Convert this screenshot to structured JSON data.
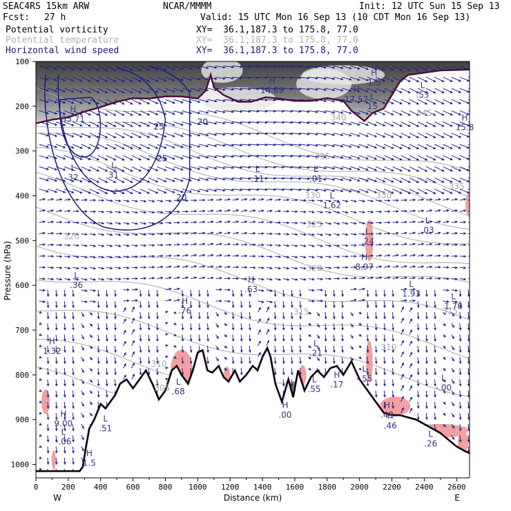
{
  "header": {
    "model": "SEAC4RS 15km ARW",
    "org": "NCAR/MMMM",
    "init": "Init: 12 UTC Sun 15 Sep 13",
    "fcst_label": "Fcst:",
    "fcst_value": "27 h",
    "valid": "Valid: 15 UTC Mon 16 Sep 13 (10 CDT Mon 16 Sep 13)",
    "fields": [
      {
        "name": "Potential vorticity",
        "xy": "XY=  36.1,187.3 to 175.8, 77.0",
        "color": "#000000"
      },
      {
        "name": "Potential temperature",
        "xy": "XY=  36.1,187.3 to 175.8, 77.0",
        "color": "#b0b0b0"
      },
      {
        "name": "Horizontal wind speed",
        "xy": "XY=  36.1,187.3 to 175.8, 77.0",
        "color": "#1a1a7a"
      }
    ]
  },
  "chart_data": {
    "type": "cross-section",
    "xlabel": "Distance (km)",
    "ylabel": "Pressure (hPa)",
    "xlim": [
      0,
      2680
    ],
    "ylim": [
      100,
      1030
    ],
    "x_ticks": [
      0,
      200,
      400,
      600,
      800,
      1000,
      1200,
      1400,
      1600,
      1800,
      2000,
      2200,
      2400,
      2600
    ],
    "y_ticks": [
      100,
      200,
      300,
      400,
      500,
      600,
      700,
      800,
      900,
      1000
    ],
    "x_end_labels": {
      "left": "W",
      "right": "E"
    },
    "terrain": [
      [
        0,
        1015
      ],
      [
        270,
        1015
      ],
      [
        290,
        1005
      ],
      [
        310,
        960
      ],
      [
        330,
        920
      ],
      [
        360,
        900
      ],
      [
        400,
        865
      ],
      [
        430,
        875
      ],
      [
        460,
        860
      ],
      [
        490,
        845
      ],
      [
        520,
        820
      ],
      [
        560,
        810
      ],
      [
        600,
        830
      ],
      [
        640,
        810
      ],
      [
        680,
        790
      ],
      [
        720,
        820
      ],
      [
        760,
        855
      ],
      [
        800,
        835
      ],
      [
        840,
        790
      ],
      [
        870,
        780
      ],
      [
        900,
        800
      ],
      [
        940,
        820
      ],
      [
        970,
        790
      ],
      [
        1000,
        750
      ],
      [
        1030,
        745
      ],
      [
        1060,
        790
      ],
      [
        1090,
        795
      ],
      [
        1130,
        780
      ],
      [
        1160,
        805
      ],
      [
        1190,
        815
      ],
      [
        1230,
        790
      ],
      [
        1260,
        815
      ],
      [
        1300,
        800
      ],
      [
        1340,
        780
      ],
      [
        1370,
        790
      ],
      [
        1400,
        760
      ],
      [
        1430,
        740
      ],
      [
        1450,
        760
      ],
      [
        1480,
        820
      ],
      [
        1520,
        860
      ],
      [
        1560,
        810
      ],
      [
        1590,
        850
      ],
      [
        1620,
        790
      ],
      [
        1660,
        835
      ],
      [
        1700,
        805
      ],
      [
        1740,
        790
      ],
      [
        1780,
        805
      ],
      [
        1820,
        785
      ],
      [
        1860,
        780
      ],
      [
        1900,
        800
      ],
      [
        1950,
        770
      ],
      [
        2000,
        810
      ],
      [
        2050,
        835
      ],
      [
        2100,
        860
      ],
      [
        2150,
        885
      ],
      [
        2200,
        890
      ],
      [
        2250,
        890
      ],
      [
        2300,
        895
      ],
      [
        2350,
        900
      ],
      [
        2400,
        910
      ],
      [
        2450,
        920
      ],
      [
        2500,
        930
      ],
      [
        2550,
        945
      ],
      [
        2600,
        960
      ],
      [
        2650,
        970
      ],
      [
        2680,
        975
      ]
    ],
    "tropopause_pv": [
      [
        0,
        238
      ],
      [
        100,
        230
      ],
      [
        200,
        225
      ],
      [
        300,
        212
      ],
      [
        400,
        202
      ],
      [
        500,
        190
      ],
      [
        600,
        182
      ],
      [
        700,
        183
      ],
      [
        800,
        178
      ],
      [
        900,
        178
      ],
      [
        1000,
        183
      ],
      [
        1050,
        165
      ],
      [
        1080,
        130
      ],
      [
        1100,
        158
      ],
      [
        1160,
        175
      ],
      [
        1250,
        190
      ],
      [
        1330,
        190
      ],
      [
        1420,
        180
      ],
      [
        1500,
        183
      ],
      [
        1600,
        188
      ],
      [
        1700,
        188
      ],
      [
        1800,
        182
      ],
      [
        1900,
        188
      ],
      [
        1950,
        210
      ],
      [
        2030,
        233
      ],
      [
        2080,
        215
      ],
      [
        2150,
        205
      ],
      [
        2200,
        175
      ],
      [
        2250,
        145
      ],
      [
        2300,
        130
      ],
      [
        2400,
        125
      ],
      [
        2500,
        120
      ],
      [
        2680,
        118
      ]
    ],
    "theta_contours": [
      {
        "label": "340",
        "label_x": 1870,
        "label_p": 232
      },
      {
        "label": "335",
        "label_x": 1770,
        "label_p": 318
      },
      {
        "label": "330",
        "label_x": 1710,
        "label_p": 405
      },
      {
        "label": "325",
        "label_x": 1720,
        "label_p": 470
      },
      {
        "label": "320",
        "label_x": 1720,
        "label_p": 568
      },
      {
        "label": "315",
        "label_x": 1640,
        "label_p": 665
      },
      {
        "label": "310",
        "label_x": 2180,
        "label_p": 745
      }
    ],
    "theta_side_labels": [
      {
        "label": "345",
        "x": 2400,
        "p": 222
      },
      {
        "label": "335",
        "x": 2600,
        "p": 385
      },
      {
        "label": "315",
        "x": 2560,
        "p": 664
      },
      {
        "label": "330",
        "x": 2150,
        "p": 405
      },
      {
        "label": "320",
        "x": 220,
        "p": 497
      },
      {
        "label": "310",
        "x": 760,
        "p": 782
      },
      {
        "label": "305",
        "x": 780,
        "p": 836
      }
    ],
    "wind_contours": [
      {
        "label": "25",
        "x": 760,
        "p": 252
      },
      {
        "label": "25",
        "x": 780,
        "p": 323
      },
      {
        "label": "20",
        "x": 900,
        "p": 410
      },
      {
        "label": "20",
        "x": 1030,
        "p": 241
      }
    ],
    "extrema": [
      {
        "type": "H",
        "value": "35.71",
        "x": 230,
        "p": 232
      },
      {
        "type": "L",
        "value": "32",
        "x": 230,
        "p": 362
      },
      {
        "type": "L",
        "value": "31",
        "x": 480,
        "p": 357
      },
      {
        "type": "H",
        "value": "14.89",
        "x": 1460,
        "p": 168
      },
      {
        "type": "H",
        "value": "17.57",
        "x": 1980,
        "p": 188
      },
      {
        "type": "L",
        "value": "15",
        "x": 2080,
        "p": 203
      },
      {
        "type": "H",
        "value": "1.5",
        "x": 2090,
        "p": 150
      },
      {
        "type": "L",
        "value": ".53",
        "x": 2390,
        "p": 178
      },
      {
        "type": "H",
        "value": "15.8",
        "x": 2650,
        "p": 250
      },
      {
        "type": "L",
        "value": ".11",
        "x": 1370,
        "p": 365
      },
      {
        "type": "L",
        "value": ".01",
        "x": 1730,
        "p": 365
      },
      {
        "type": "L",
        "value": "1.62",
        "x": 1830,
        "p": 425
      },
      {
        "type": "L",
        "value": ".24",
        "x": 2050,
        "p": 505
      },
      {
        "type": "H",
        "value": "8.97",
        "x": 2030,
        "p": 562
      },
      {
        "type": "L",
        "value": ".03",
        "x": 2420,
        "p": 480
      },
      {
        "type": "L",
        "value": "1.93",
        "x": 2320,
        "p": 622
      },
      {
        "type": "L",
        "value": "1.70",
        "x": 2580,
        "p": 650
      },
      {
        "type": "L",
        "value": ".36",
        "x": 250,
        "p": 603
      },
      {
        "type": "H",
        "value": ".63",
        "x": 1330,
        "p": 612
      },
      {
        "type": "H",
        "value": ".76",
        "x": 920,
        "p": 660
      },
      {
        "type": "H",
        "value": "1.32",
        "x": 100,
        "p": 750
      },
      {
        "type": "L",
        "value": ".21",
        "x": 1730,
        "p": 755
      },
      {
        "type": "L",
        "value": ".68",
        "x": 880,
        "p": 840
      },
      {
        "type": "L",
        "value": ".55",
        "x": 1720,
        "p": 835
      },
      {
        "type": "H",
        "value": ".17",
        "x": 1860,
        "p": 825
      },
      {
        "type": "L",
        "value": "-.55",
        "x": 2030,
        "p": 812
      },
      {
        "type": "L",
        "value": "-.00",
        "x": 2520,
        "p": 832
      },
      {
        "type": "H",
        "value": ".00",
        "x": 1540,
        "p": 893
      },
      {
        "type": "H",
        "value": ".49",
        "x": 2170,
        "p": 893
      },
      {
        "type": "H",
        "value": ".46",
        "x": 2190,
        "p": 917
      },
      {
        "type": "L",
        "value": ".26",
        "x": 2440,
        "p": 957
      },
      {
        "type": "H",
        "value": "9.00",
        "x": 170,
        "p": 912
      },
      {
        "type": "L",
        "value": "-.06",
        "x": 170,
        "p": 952
      },
      {
        "type": "L",
        "value": ".51",
        "x": 430,
        "p": 923
      },
      {
        "type": "H",
        "value": "1.5",
        "x": 330,
        "p": 1000
      }
    ],
    "colors": {
      "pv_shading": "#555555",
      "pv_negative": "#f4a0a0",
      "tropopause": "#4a1038",
      "theta": "#a9a9a9",
      "wind_contour": "#1a1a80",
      "wind_vector": "#22228a",
      "terrain": "#000000"
    }
  }
}
